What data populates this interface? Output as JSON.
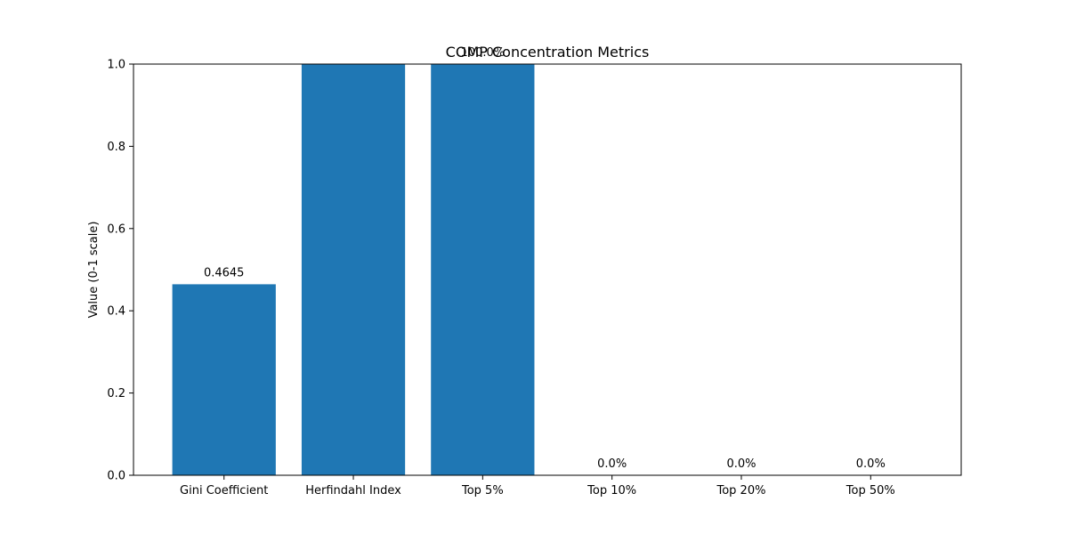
{
  "chart_data": {
    "type": "bar",
    "title": "COMP Concentration Metrics",
    "xlabel": "",
    "ylabel": "Value (0-1 scale)",
    "ylim": [
      0,
      1.0
    ],
    "yticks": [
      "0.0",
      "0.2",
      "0.4",
      "0.6",
      "0.8",
      "1.0"
    ],
    "categories": [
      "Gini Coefficient",
      "Herfindahl Index",
      "Top 5%",
      "Top 10%",
      "Top 20%",
      "Top 50%"
    ],
    "values": [
      0.4645,
      1.0,
      1.0,
      0.0,
      0.0,
      0.0
    ],
    "value_labels": [
      "0.4645",
      "",
      "100.0%",
      "0.0%",
      "0.0%",
      "0.0%"
    ],
    "bar_color": "#1f77b4",
    "grid": false,
    "legend": "none"
  }
}
